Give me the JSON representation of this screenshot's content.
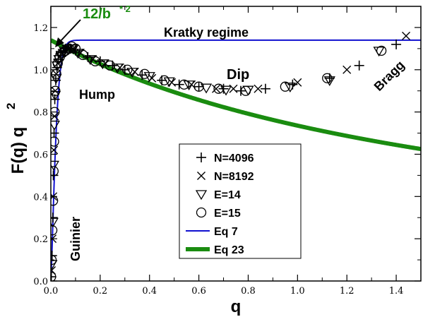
{
  "chart_data": {
    "type": "scatter",
    "ylabel": "F(q) q",
    "ylabel_superscript": "2",
    "xlabel": "q",
    "xlim": [
      0,
      1.5
    ],
    "ylim": [
      0,
      1.3
    ],
    "x_ticks": [
      "0.0",
      "0.2",
      "0.4",
      "0.6",
      "0.8",
      "1.0",
      "1.2",
      "1.4"
    ],
    "y_ticks": [
      "0.0",
      "0.2",
      "0.4",
      "0.6",
      "0.8",
      "1.0",
      "1.2"
    ],
    "legend_position": "center-right",
    "annotations": {
      "kratky": "Kratky regime",
      "dip": "Dip",
      "hump": "Hump",
      "bragg": "Bragg",
      "guinier": "Guinier",
      "intercept": "12/b",
      "intercept_sup": "* 2"
    },
    "series": [
      {
        "name": "N=4096",
        "marker": "plus",
        "points": [
          [
            0.002,
            0.02
          ],
          [
            0.005,
            0.12
          ],
          [
            0.008,
            0.3
          ],
          [
            0.01,
            0.5
          ],
          [
            0.013,
            0.7
          ],
          [
            0.016,
            0.86
          ],
          [
            0.02,
            0.95
          ],
          [
            0.025,
            1.01
          ],
          [
            0.03,
            1.05
          ],
          [
            0.04,
            1.08
          ],
          [
            0.05,
            1.09
          ],
          [
            0.06,
            1.1
          ],
          [
            0.08,
            1.1
          ],
          [
            0.1,
            1.09
          ],
          [
            0.15,
            1.06
          ],
          [
            0.2,
            1.04
          ],
          [
            0.25,
            1.02
          ],
          [
            0.3,
            1.0
          ],
          [
            0.37,
            0.975
          ],
          [
            0.45,
            0.95
          ],
          [
            0.52,
            0.93
          ],
          [
            0.6,
            0.92
          ],
          [
            0.7,
            0.91
          ],
          [
            0.77,
            0.9
          ],
          [
            0.87,
            0.91
          ],
          [
            0.98,
            0.93
          ],
          [
            1.13,
            0.96
          ],
          [
            1.25,
            1.02
          ],
          [
            1.4,
            1.12
          ]
        ]
      },
      {
        "name": "N=8192",
        "marker": "cross",
        "points": [
          [
            0.003,
            0.05
          ],
          [
            0.006,
            0.2
          ],
          [
            0.009,
            0.4
          ],
          [
            0.012,
            0.62
          ],
          [
            0.015,
            0.78
          ],
          [
            0.018,
            0.9
          ],
          [
            0.022,
            0.98
          ],
          [
            0.028,
            1.03
          ],
          [
            0.035,
            1.06
          ],
          [
            0.045,
            1.08
          ],
          [
            0.06,
            1.1
          ],
          [
            0.07,
            1.1
          ],
          [
            0.09,
            1.1
          ],
          [
            0.12,
            1.08
          ],
          [
            0.17,
            1.05
          ],
          [
            0.22,
            1.03
          ],
          [
            0.28,
            1.01
          ],
          [
            0.34,
            0.99
          ],
          [
            0.41,
            0.96
          ],
          [
            0.49,
            0.94
          ],
          [
            0.57,
            0.93
          ],
          [
            0.67,
            0.91
          ],
          [
            0.74,
            0.91
          ],
          [
            0.84,
            0.91
          ],
          [
            1.0,
            0.94
          ],
          [
            1.2,
            1.0
          ],
          [
            1.44,
            1.16
          ]
        ]
      },
      {
        "name": "E=14",
        "marker": "triangle",
        "points": [
          [
            0.004,
            0.08
          ],
          [
            0.008,
            0.28
          ],
          [
            0.011,
            0.55
          ],
          [
            0.014,
            0.74
          ],
          [
            0.017,
            0.88
          ],
          [
            0.021,
            0.96
          ],
          [
            0.026,
            1.02
          ],
          [
            0.033,
            1.05
          ],
          [
            0.042,
            1.07
          ],
          [
            0.055,
            1.09
          ],
          [
            0.07,
            1.1
          ],
          [
            0.09,
            1.1
          ],
          [
            0.11,
            1.08
          ],
          [
            0.16,
            1.05
          ],
          [
            0.21,
            1.03
          ],
          [
            0.27,
            1.01
          ],
          [
            0.33,
            0.99
          ],
          [
            0.4,
            0.97
          ],
          [
            0.48,
            0.945
          ],
          [
            0.56,
            0.93
          ],
          [
            0.63,
            0.915
          ],
          [
            0.71,
            0.905
          ],
          [
            0.8,
            0.905
          ],
          [
            0.97,
            0.92
          ],
          [
            1.13,
            0.95
          ],
          [
            1.33,
            1.09
          ]
        ]
      },
      {
        "name": "E=15",
        "marker": "circle",
        "points": [
          [
            0.001,
            0.02
          ],
          [
            0.003,
            0.1
          ],
          [
            0.006,
            0.24
          ],
          [
            0.009,
            0.38
          ],
          [
            0.011,
            0.52
          ],
          [
            0.013,
            0.66
          ],
          [
            0.015,
            0.8
          ],
          [
            0.018,
            0.9
          ],
          [
            0.022,
            0.98
          ],
          [
            0.028,
            1.03
          ],
          [
            0.036,
            1.06
          ],
          [
            0.048,
            1.08
          ],
          [
            0.06,
            1.09
          ],
          [
            0.075,
            1.1
          ],
          [
            0.085,
            1.11
          ],
          [
            0.1,
            1.1
          ],
          [
            0.13,
            1.07
          ],
          [
            0.18,
            1.04
          ],
          [
            0.24,
            1.02
          ],
          [
            0.31,
            1.0
          ],
          [
            0.38,
            0.98
          ],
          [
            0.46,
            0.95
          ],
          [
            0.54,
            0.93
          ],
          [
            0.6,
            0.92
          ],
          [
            0.68,
            0.91
          ],
          [
            0.79,
            0.9
          ],
          [
            0.95,
            0.92
          ],
          [
            1.12,
            0.96
          ],
          [
            1.34,
            1.09
          ]
        ]
      },
      {
        "name": "Eq 7",
        "type": "line",
        "color": "#1010d0",
        "line_width": 2
      },
      {
        "name": "Eq 23",
        "type": "line",
        "color": "#1a8c10",
        "line_width": 6
      }
    ]
  }
}
